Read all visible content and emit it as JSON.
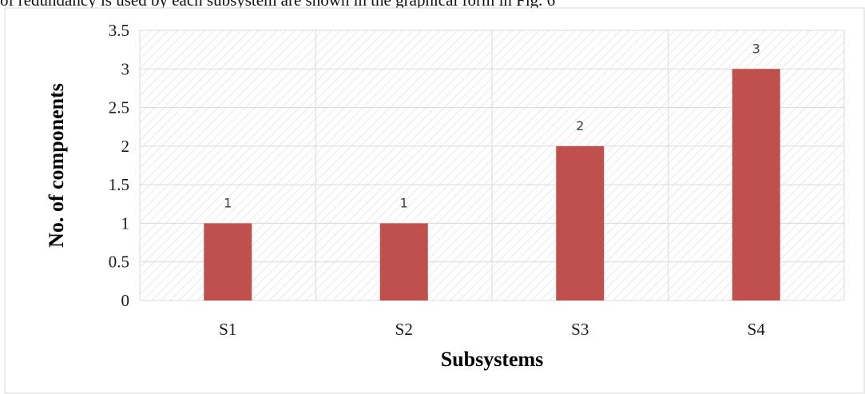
{
  "page": {
    "caption_fragment": "of redundancy is used by each subsystem are shown in the graphical form in Fig. 6"
  },
  "colors": {
    "bar": "#c0504d",
    "grid": "#d9d9d9",
    "hatch": "#d9d9d9",
    "frame": "#d9d9d9"
  },
  "chart_data": {
    "type": "bar",
    "categories": [
      "S1",
      "S2",
      "S3",
      "S4"
    ],
    "values": [
      1,
      1,
      2,
      3
    ],
    "data_labels": [
      "1",
      "1",
      "2",
      "3"
    ],
    "title": "",
    "xlabel": "Subsystems",
    "ylabel": "No. of components",
    "ylim": [
      0,
      3.5
    ],
    "yticks": [
      "0",
      "0.5",
      "1",
      "1.5",
      "2",
      "2.5",
      "3",
      "3.5"
    ],
    "grid": true,
    "legend": "none"
  }
}
